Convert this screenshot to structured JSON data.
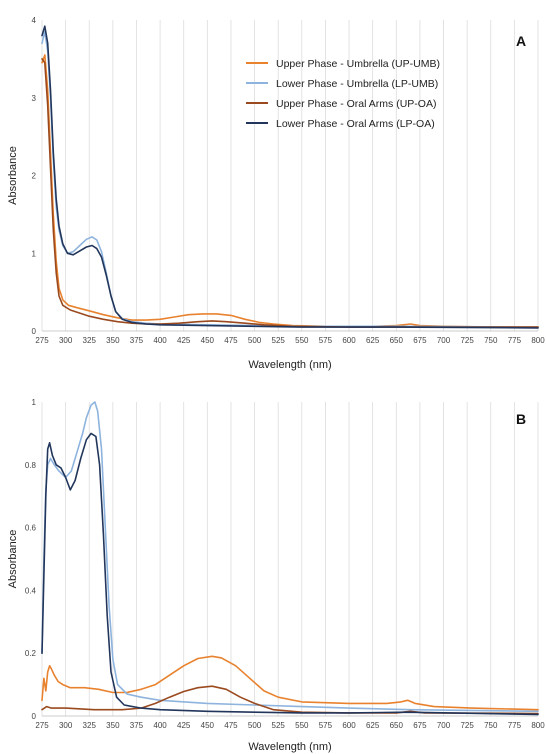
{
  "chart_data": [
    {
      "type": "line",
      "panel_label": "A",
      "xlabel": "Wavelength (nm)",
      "ylabel": "Absorbance",
      "xlim": [
        275,
        800
      ],
      "ylim": [
        0,
        4
      ],
      "x_ticks": [
        275,
        300,
        325,
        350,
        375,
        400,
        425,
        450,
        475,
        500,
        525,
        550,
        575,
        600,
        625,
        650,
        675,
        700,
        725,
        750,
        775,
        800
      ],
      "y_ticks": [
        0,
        1,
        2,
        3,
        4
      ],
      "grid": "vertical",
      "legend_position": "top-right",
      "series": [
        {
          "name": "Upper Phase - Umbrella (UP-UMB)",
          "color": "#e8822e",
          "points": [
            [
              275,
              3.45
            ],
            [
              278,
              3.55
            ],
            [
              281,
              3.1
            ],
            [
              284,
              2.3
            ],
            [
              287,
              1.5
            ],
            [
              290,
              0.9
            ],
            [
              293,
              0.55
            ],
            [
              297,
              0.4
            ],
            [
              303,
              0.33
            ],
            [
              312,
              0.3
            ],
            [
              325,
              0.26
            ],
            [
              340,
              0.21
            ],
            [
              355,
              0.17
            ],
            [
              370,
              0.14
            ],
            [
              385,
              0.14
            ],
            [
              400,
              0.15
            ],
            [
              415,
              0.18
            ],
            [
              430,
              0.21
            ],
            [
              445,
              0.22
            ],
            [
              460,
              0.22
            ],
            [
              475,
              0.2
            ],
            [
              490,
              0.15
            ],
            [
              505,
              0.11
            ],
            [
              520,
              0.09
            ],
            [
              540,
              0.07
            ],
            [
              575,
              0.06
            ],
            [
              625,
              0.06
            ],
            [
              650,
              0.07
            ],
            [
              665,
              0.09
            ],
            [
              675,
              0.07
            ],
            [
              700,
              0.06
            ],
            [
              750,
              0.05
            ],
            [
              800,
              0.05
            ]
          ]
        },
        {
          "name": "Lower Phase - Umbrella (LP-UMB)",
          "color": "#8eb4de",
          "points": [
            [
              275,
              3.7
            ],
            [
              278,
              3.85
            ],
            [
              281,
              3.6
            ],
            [
              284,
              3.0
            ],
            [
              287,
              2.2
            ],
            [
              290,
              1.6
            ],
            [
              293,
              1.3
            ],
            [
              297,
              1.1
            ],
            [
              302,
              1.0
            ],
            [
              308,
              1.02
            ],
            [
              315,
              1.1
            ],
            [
              322,
              1.18
            ],
            [
              328,
              1.21
            ],
            [
              333,
              1.17
            ],
            [
              338,
              1.02
            ],
            [
              343,
              0.75
            ],
            [
              348,
              0.45
            ],
            [
              353,
              0.25
            ],
            [
              360,
              0.16
            ],
            [
              370,
              0.12
            ],
            [
              385,
              0.1
            ],
            [
              400,
              0.09
            ],
            [
              450,
              0.08
            ],
            [
              500,
              0.07
            ],
            [
              550,
              0.06
            ],
            [
              650,
              0.06
            ],
            [
              800,
              0.05
            ]
          ]
        },
        {
          "name": "Upper Phase - Oral Arms (UP-OA)",
          "color": "#9a4a1e",
          "points": [
            [
              275,
              3.5
            ],
            [
              278,
              3.45
            ],
            [
              281,
              2.9
            ],
            [
              284,
              2.1
            ],
            [
              287,
              1.3
            ],
            [
              290,
              0.75
            ],
            [
              293,
              0.45
            ],
            [
              297,
              0.33
            ],
            [
              305,
              0.27
            ],
            [
              315,
              0.23
            ],
            [
              325,
              0.19
            ],
            [
              340,
              0.15
            ],
            [
              355,
              0.12
            ],
            [
              370,
              0.1
            ],
            [
              385,
              0.09
            ],
            [
              400,
              0.09
            ],
            [
              420,
              0.1
            ],
            [
              440,
              0.12
            ],
            [
              455,
              0.13
            ],
            [
              470,
              0.12
            ],
            [
              490,
              0.1
            ],
            [
              510,
              0.08
            ],
            [
              540,
              0.06
            ],
            [
              600,
              0.05
            ],
            [
              665,
              0.05
            ],
            [
              700,
              0.05
            ],
            [
              800,
              0.05
            ]
          ]
        },
        {
          "name": "Lower Phase - Oral Arms (LP-OA)",
          "color": "#22365c",
          "points": [
            [
              275,
              3.8
            ],
            [
              278,
              3.92
            ],
            [
              281,
              3.7
            ],
            [
              284,
              3.1
            ],
            [
              287,
              2.3
            ],
            [
              290,
              1.7
            ],
            [
              293,
              1.35
            ],
            [
              297,
              1.12
            ],
            [
              302,
              1.0
            ],
            [
              308,
              0.98
            ],
            [
              315,
              1.03
            ],
            [
              322,
              1.08
            ],
            [
              328,
              1.1
            ],
            [
              333,
              1.06
            ],
            [
              338,
              0.95
            ],
            [
              343,
              0.72
            ],
            [
              348,
              0.45
            ],
            [
              353,
              0.25
            ],
            [
              360,
              0.15
            ],
            [
              370,
              0.11
            ],
            [
              385,
              0.09
            ],
            [
              400,
              0.08
            ],
            [
              450,
              0.07
            ],
            [
              500,
              0.06
            ],
            [
              550,
              0.05
            ],
            [
              650,
              0.05
            ],
            [
              800,
              0.04
            ]
          ]
        }
      ]
    },
    {
      "type": "line",
      "panel_label": "B",
      "xlabel": "Wavelength (nm)",
      "ylabel": "Absorbance",
      "xlim": [
        275,
        800
      ],
      "ylim": [
        0,
        1
      ],
      "x_ticks": [
        275,
        300,
        325,
        350,
        375,
        400,
        425,
        450,
        475,
        500,
        525,
        550,
        575,
        600,
        625,
        650,
        675,
        700,
        725,
        750,
        775,
        800
      ],
      "y_ticks": [
        0,
        0.2,
        0.4,
        0.6,
        0.8,
        1
      ],
      "grid": "vertical",
      "series": [
        {
          "name": "Upper Phase - Umbrella (UP-UMB)",
          "color": "#e8822e",
          "points": [
            [
              275,
              0.05
            ],
            [
              277,
              0.12
            ],
            [
              279,
              0.08
            ],
            [
              281,
              0.14
            ],
            [
              283,
              0.16
            ],
            [
              285,
              0.15
            ],
            [
              288,
              0.13
            ],
            [
              292,
              0.11
            ],
            [
              297,
              0.1
            ],
            [
              305,
              0.09
            ],
            [
              320,
              0.09
            ],
            [
              335,
              0.085
            ],
            [
              350,
              0.075
            ],
            [
              365,
              0.075
            ],
            [
              380,
              0.085
            ],
            [
              395,
              0.1
            ],
            [
              410,
              0.13
            ],
            [
              425,
              0.16
            ],
            [
              440,
              0.183
            ],
            [
              455,
              0.19
            ],
            [
              465,
              0.185
            ],
            [
              480,
              0.16
            ],
            [
              495,
              0.12
            ],
            [
              510,
              0.08
            ],
            [
              525,
              0.06
            ],
            [
              550,
              0.045
            ],
            [
              600,
              0.04
            ],
            [
              640,
              0.04
            ],
            [
              655,
              0.045
            ],
            [
              662,
              0.05
            ],
            [
              670,
              0.04
            ],
            [
              690,
              0.03
            ],
            [
              730,
              0.025
            ],
            [
              800,
              0.02
            ]
          ]
        },
        {
          "name": "Lower Phase - Umbrella (LP-UMB)",
          "color": "#8eb4de",
          "points": [
            [
              275,
              0.2
            ],
            [
              277,
              0.5
            ],
            [
              279,
              0.72
            ],
            [
              281,
              0.8
            ],
            [
              284,
              0.82
            ],
            [
              288,
              0.8
            ],
            [
              293,
              0.78
            ],
            [
              300,
              0.76
            ],
            [
              306,
              0.78
            ],
            [
              312,
              0.84
            ],
            [
              318,
              0.9
            ],
            [
              322,
              0.95
            ],
            [
              327,
              0.99
            ],
            [
              331,
              1.0
            ],
            [
              334,
              0.97
            ],
            [
              338,
              0.85
            ],
            [
              342,
              0.6
            ],
            [
              346,
              0.35
            ],
            [
              350,
              0.18
            ],
            [
              355,
              0.1
            ],
            [
              365,
              0.07
            ],
            [
              380,
              0.06
            ],
            [
              400,
              0.05
            ],
            [
              450,
              0.04
            ],
            [
              500,
              0.035
            ],
            [
              550,
              0.03
            ],
            [
              600,
              0.025
            ],
            [
              665,
              0.02
            ],
            [
              800,
              0.015
            ]
          ]
        },
        {
          "name": "Upper Phase - Oral Arms (UP-OA)",
          "color": "#9a4a1e",
          "points": [
            [
              275,
              0.02
            ],
            [
              280,
              0.03
            ],
            [
              285,
              0.025
            ],
            [
              300,
              0.025
            ],
            [
              330,
              0.02
            ],
            [
              360,
              0.02
            ],
            [
              380,
              0.025
            ],
            [
              395,
              0.04
            ],
            [
              410,
              0.06
            ],
            [
              425,
              0.078
            ],
            [
              440,
              0.09
            ],
            [
              455,
              0.095
            ],
            [
              470,
              0.085
            ],
            [
              485,
              0.06
            ],
            [
              500,
              0.04
            ],
            [
              520,
              0.02
            ],
            [
              550,
              0.012
            ],
            [
              600,
              0.01
            ],
            [
              650,
              0.01
            ],
            [
              665,
              0.015
            ],
            [
              680,
              0.01
            ],
            [
              800,
              0.008
            ]
          ]
        },
        {
          "name": "Lower Phase - Oral Arms (LP-OA)",
          "color": "#22365c",
          "points": [
            [
              275,
              0.2
            ],
            [
              277,
              0.45
            ],
            [
              279,
              0.7
            ],
            [
              281,
              0.85
            ],
            [
              283,
              0.87
            ],
            [
              286,
              0.83
            ],
            [
              290,
              0.8
            ],
            [
              295,
              0.79
            ],
            [
              300,
              0.76
            ],
            [
              305,
              0.72
            ],
            [
              310,
              0.75
            ],
            [
              316,
              0.82
            ],
            [
              322,
              0.88
            ],
            [
              327,
              0.9
            ],
            [
              332,
              0.89
            ],
            [
              336,
              0.8
            ],
            [
              340,
              0.58
            ],
            [
              344,
              0.32
            ],
            [
              348,
              0.14
            ],
            [
              354,
              0.06
            ],
            [
              362,
              0.035
            ],
            [
              380,
              0.025
            ],
            [
              400,
              0.02
            ],
            [
              450,
              0.015
            ],
            [
              500,
              0.012
            ],
            [
              550,
              0.01
            ],
            [
              600,
              0.01
            ],
            [
              660,
              0.012
            ],
            [
              800,
              0.005
            ]
          ]
        }
      ]
    }
  ]
}
